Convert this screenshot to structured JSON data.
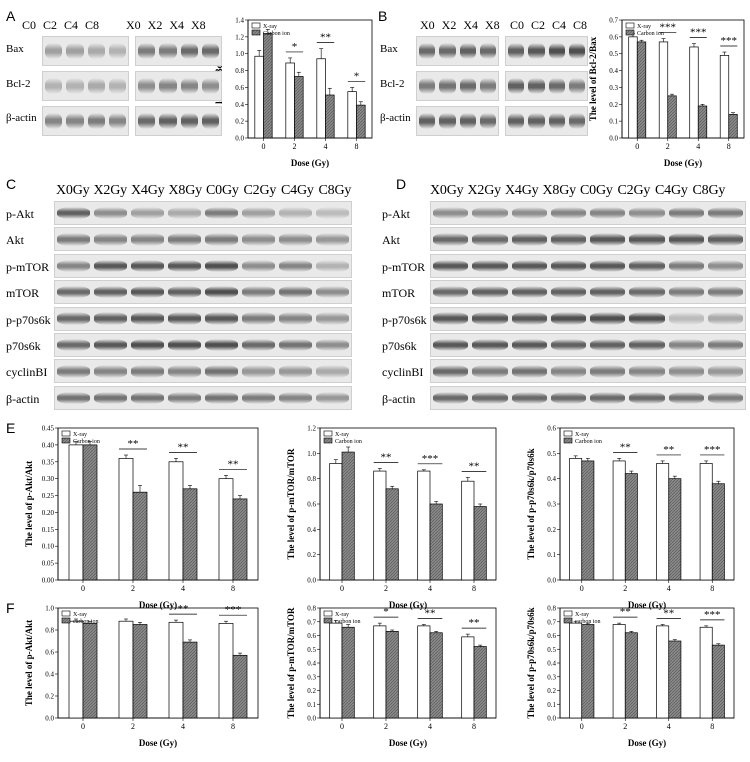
{
  "panels": {
    "A": {
      "letter": "A",
      "top_lanes": [
        "C0",
        "C2",
        "C4",
        "C8"
      ],
      "top_lanes2": [
        "X0",
        "X2",
        "X4",
        "X8"
      ],
      "proteins": [
        "Bax",
        "Bcl-2",
        "β-actin"
      ]
    },
    "B": {
      "letter": "B",
      "top_lanes": [
        "X0",
        "X2",
        "X4",
        "X8"
      ],
      "top_lanes2": [
        "C0",
        "C2",
        "C4",
        "C8"
      ],
      "proteins": [
        "Bax",
        "Bcl-2",
        "β-actin"
      ]
    },
    "C": {
      "letter": "C",
      "lanes": [
        "X0Gy",
        "X2Gy",
        "X4Gy",
        "X8Gy",
        "C0Gy",
        "C2Gy",
        "C4Gy",
        "C8Gy"
      ],
      "proteins": [
        "p-Akt",
        "Akt",
        "p-mTOR",
        "mTOR",
        "p-p70s6k",
        "p70s6k",
        "cyclinBI",
        "β-actin"
      ]
    },
    "D": {
      "letter": "D",
      "lanes": [
        "X0Gy",
        "X2Gy",
        "X4Gy",
        "X8Gy",
        "C0Gy",
        "C2Gy",
        "C4Gy",
        "C8Gy"
      ],
      "proteins": [
        "p-Akt",
        "Akt",
        "p-mTOR",
        "mTOR",
        "p-p70s6k",
        "p70s6k",
        "cyclinBI",
        "β-actin"
      ]
    },
    "E": {
      "letter": "E"
    },
    "F": {
      "letter": "F"
    }
  },
  "legend": {
    "xray": "X-ray",
    "carbon": "Carbon ion",
    "carbon_lc": "carbon ion"
  },
  "chart_data": [
    {
      "id": "A",
      "type": "bar",
      "ylabel": "The level of Bcl-2/Bax",
      "xlabel": "Dose (Gy)",
      "categories": [
        "0",
        "2",
        "4",
        "8"
      ],
      "ylim": [
        0,
        1.4
      ],
      "yticks": [
        0,
        0.2,
        0.4,
        0.6,
        0.8,
        1.0,
        1.2,
        1.4
      ],
      "series": [
        {
          "name": "X-ray",
          "values": [
            0.97,
            0.89,
            0.94,
            0.55
          ],
          "err": [
            0.07,
            0.06,
            0.12,
            0.05
          ]
        },
        {
          "name": "Carbon ion",
          "values": [
            1.24,
            0.73,
            0.51,
            0.39
          ],
          "err": [
            0.05,
            0.05,
            0.08,
            0.04
          ]
        }
      ],
      "sig": [
        "",
        "*",
        "**",
        "*"
      ]
    },
    {
      "id": "B",
      "type": "bar",
      "ylabel": "The level of Bcl-2/Bax",
      "xlabel": "Dose (Gy)",
      "categories": [
        "0",
        "2",
        "4",
        "8"
      ],
      "ylim": [
        0,
        0.7
      ],
      "yticks": [
        0,
        0.1,
        0.2,
        0.3,
        0.4,
        0.5,
        0.6,
        0.7
      ],
      "series": [
        {
          "name": "X-ray",
          "values": [
            0.6,
            0.57,
            0.54,
            0.49
          ],
          "err": [
            0.02,
            0.02,
            0.02,
            0.02
          ]
        },
        {
          "name": "Carbon ion",
          "values": [
            0.57,
            0.25,
            0.19,
            0.14
          ],
          "err": [
            0.01,
            0.01,
            0.01,
            0.01
          ]
        }
      ],
      "sig": [
        "",
        "***",
        "***",
        "***"
      ]
    },
    {
      "id": "E1",
      "type": "bar",
      "ylabel": "The level of p-Akt/Akt",
      "xlabel": "Dose (Gy)",
      "categories": [
        "0",
        "2",
        "4",
        "8"
      ],
      "ylim": [
        0,
        0.45
      ],
      "yticks": [
        0,
        0.05,
        0.1,
        0.15,
        0.2,
        0.25,
        0.3,
        0.35,
        0.4,
        0.45
      ],
      "series": [
        {
          "name": "X-ray",
          "values": [
            0.4,
            0.36,
            0.35,
            0.3
          ],
          "err": [
            0.01,
            0.01,
            0.01,
            0.01
          ]
        },
        {
          "name": "Carbon ion",
          "values": [
            0.4,
            0.26,
            0.27,
            0.24
          ],
          "err": [
            0.01,
            0.02,
            0.01,
            0.01
          ]
        }
      ],
      "sig": [
        "",
        "**",
        "**",
        "**"
      ]
    },
    {
      "id": "E2",
      "type": "bar",
      "ylabel": "The level of p-mTOR/mTOR",
      "xlabel": "Dose (Gy)",
      "categories": [
        "0",
        "2",
        "4",
        "8"
      ],
      "ylim": [
        0,
        1.2
      ],
      "yticks": [
        0,
        0.2,
        0.4,
        0.6,
        0.8,
        1.0,
        1.2
      ],
      "series": [
        {
          "name": "X-ray",
          "values": [
            0.92,
            0.86,
            0.86,
            0.78
          ],
          "err": [
            0.03,
            0.02,
            0.01,
            0.03
          ]
        },
        {
          "name": "Carbon ion",
          "values": [
            1.01,
            0.72,
            0.6,
            0.58
          ],
          "err": [
            0.04,
            0.02,
            0.02,
            0.02
          ]
        }
      ],
      "sig": [
        "",
        "**",
        "***",
        "**"
      ]
    },
    {
      "id": "E3",
      "type": "bar",
      "ylabel": "The level of p-p70s6k/p70s6k",
      "xlabel": "Dose (Gy)",
      "categories": [
        "0",
        "2",
        "4",
        "8"
      ],
      "ylim": [
        0,
        0.6
      ],
      "yticks": [
        0,
        0.1,
        0.2,
        0.3,
        0.4,
        0.5,
        0.6
      ],
      "series": [
        {
          "name": "X-ray",
          "values": [
            0.48,
            0.47,
            0.46,
            0.46
          ],
          "err": [
            0.01,
            0.01,
            0.01,
            0.01
          ]
        },
        {
          "name": "Carbon ion",
          "values": [
            0.47,
            0.42,
            0.4,
            0.38
          ],
          "err": [
            0.01,
            0.01,
            0.01,
            0.01
          ]
        }
      ],
      "sig": [
        "",
        "**",
        "**",
        "***"
      ]
    },
    {
      "id": "F1",
      "type": "bar",
      "ylabel": "The level of p-Akt/Akt",
      "xlabel": "Dose (Gy)",
      "categories": [
        "0",
        "2",
        "4",
        "8"
      ],
      "ylim": [
        0,
        1.0
      ],
      "yticks": [
        0,
        0.2,
        0.4,
        0.6,
        0.8,
        1.0
      ],
      "series": [
        {
          "name": "X-ray",
          "values": [
            0.88,
            0.88,
            0.87,
            0.86
          ],
          "err": [
            0.02,
            0.02,
            0.02,
            0.02
          ]
        },
        {
          "name": "carbon ion",
          "values": [
            0.86,
            0.85,
            0.69,
            0.57
          ],
          "err": [
            0.02,
            0.02,
            0.02,
            0.02
          ]
        }
      ],
      "sig": [
        "",
        "",
        "**",
        "***"
      ]
    },
    {
      "id": "F2",
      "type": "bar",
      "ylabel": "The level of p-mTOR/mTOR",
      "xlabel": "Dose (Gy)",
      "categories": [
        "0",
        "2",
        "4",
        "8"
      ],
      "ylim": [
        0,
        0.8
      ],
      "yticks": [
        0,
        0.1,
        0.2,
        0.3,
        0.4,
        0.5,
        0.6,
        0.7,
        0.8
      ],
      "series": [
        {
          "name": "X-ray",
          "values": [
            0.69,
            0.67,
            0.67,
            0.59
          ],
          "err": [
            0.02,
            0.02,
            0.01,
            0.02
          ]
        },
        {
          "name": "carbon ion",
          "values": [
            0.66,
            0.63,
            0.62,
            0.52
          ],
          "err": [
            0.02,
            0.01,
            0.01,
            0.01
          ]
        }
      ],
      "sig": [
        "",
        "*",
        "**",
        "**"
      ]
    },
    {
      "id": "F3",
      "type": "bar",
      "ylabel": "The level of p-p70s6k/p70s6k",
      "xlabel": "Dose (Gy)",
      "categories": [
        "0",
        "2",
        "4",
        "8"
      ],
      "ylim": [
        0,
        0.8
      ],
      "yticks": [
        0,
        0.1,
        0.2,
        0.3,
        0.4,
        0.5,
        0.6,
        0.7,
        0.8
      ],
      "series": [
        {
          "name": "X-ray",
          "values": [
            0.69,
            0.68,
            0.67,
            0.66
          ],
          "err": [
            0.01,
            0.01,
            0.01,
            0.01
          ]
        },
        {
          "name": "carbon ion",
          "values": [
            0.68,
            0.62,
            0.56,
            0.53
          ],
          "err": [
            0.01,
            0.01,
            0.01,
            0.01
          ]
        }
      ],
      "sig": [
        "",
        "**",
        "**",
        "***"
      ]
    }
  ],
  "blot_intensity": {
    "A": [
      [
        0.4,
        0.4,
        0.35,
        0.3,
        0.6,
        0.6,
        0.7,
        0.7
      ],
      [
        0.3,
        0.3,
        0.35,
        0.3,
        0.5,
        0.55,
        0.55,
        0.5
      ],
      [
        0.55,
        0.55,
        0.6,
        0.55,
        0.7,
        0.75,
        0.75,
        0.75
      ]
    ],
    "B": [
      [
        0.7,
        0.7,
        0.75,
        0.7,
        0.75,
        0.8,
        0.85,
        0.85
      ],
      [
        0.6,
        0.65,
        0.7,
        0.6,
        0.75,
        0.75,
        0.7,
        0.6
      ],
      [
        0.75,
        0.75,
        0.75,
        0.7,
        0.75,
        0.75,
        0.75,
        0.7
      ]
    ],
    "C": [
      [
        0.75,
        0.5,
        0.4,
        0.35,
        0.6,
        0.4,
        0.3,
        0.25
      ],
      [
        0.6,
        0.55,
        0.55,
        0.6,
        0.6,
        0.5,
        0.5,
        0.45
      ],
      [
        0.55,
        0.8,
        0.8,
        0.8,
        0.85,
        0.5,
        0.55,
        0.3
      ],
      [
        0.7,
        0.75,
        0.8,
        0.75,
        0.85,
        0.6,
        0.65,
        0.5
      ],
      [
        0.7,
        0.75,
        0.8,
        0.8,
        0.8,
        0.6,
        0.55,
        0.45
      ],
      [
        0.7,
        0.8,
        0.85,
        0.85,
        0.85,
        0.7,
        0.65,
        0.5
      ],
      [
        0.6,
        0.55,
        0.6,
        0.55,
        0.65,
        0.45,
        0.45,
        0.35
      ],
      [
        0.65,
        0.65,
        0.65,
        0.6,
        0.65,
        0.6,
        0.55,
        0.45
      ]
    ],
    "D": [
      [
        0.5,
        0.5,
        0.5,
        0.55,
        0.55,
        0.5,
        0.6,
        0.6
      ],
      [
        0.7,
        0.7,
        0.75,
        0.75,
        0.8,
        0.8,
        0.8,
        0.75
      ],
      [
        0.8,
        0.8,
        0.8,
        0.8,
        0.8,
        0.75,
        0.6,
        0.5
      ],
      [
        0.7,
        0.75,
        0.75,
        0.75,
        0.75,
        0.7,
        0.6,
        0.6
      ],
      [
        0.8,
        0.8,
        0.8,
        0.85,
        0.85,
        0.85,
        0.25,
        0.35
      ],
      [
        0.8,
        0.8,
        0.8,
        0.75,
        0.75,
        0.75,
        0.55,
        0.6
      ],
      [
        0.7,
        0.6,
        0.65,
        0.55,
        0.6,
        0.55,
        0.5,
        0.45
      ],
      [
        0.7,
        0.7,
        0.7,
        0.7,
        0.7,
        0.7,
        0.65,
        0.6
      ]
    ]
  }
}
